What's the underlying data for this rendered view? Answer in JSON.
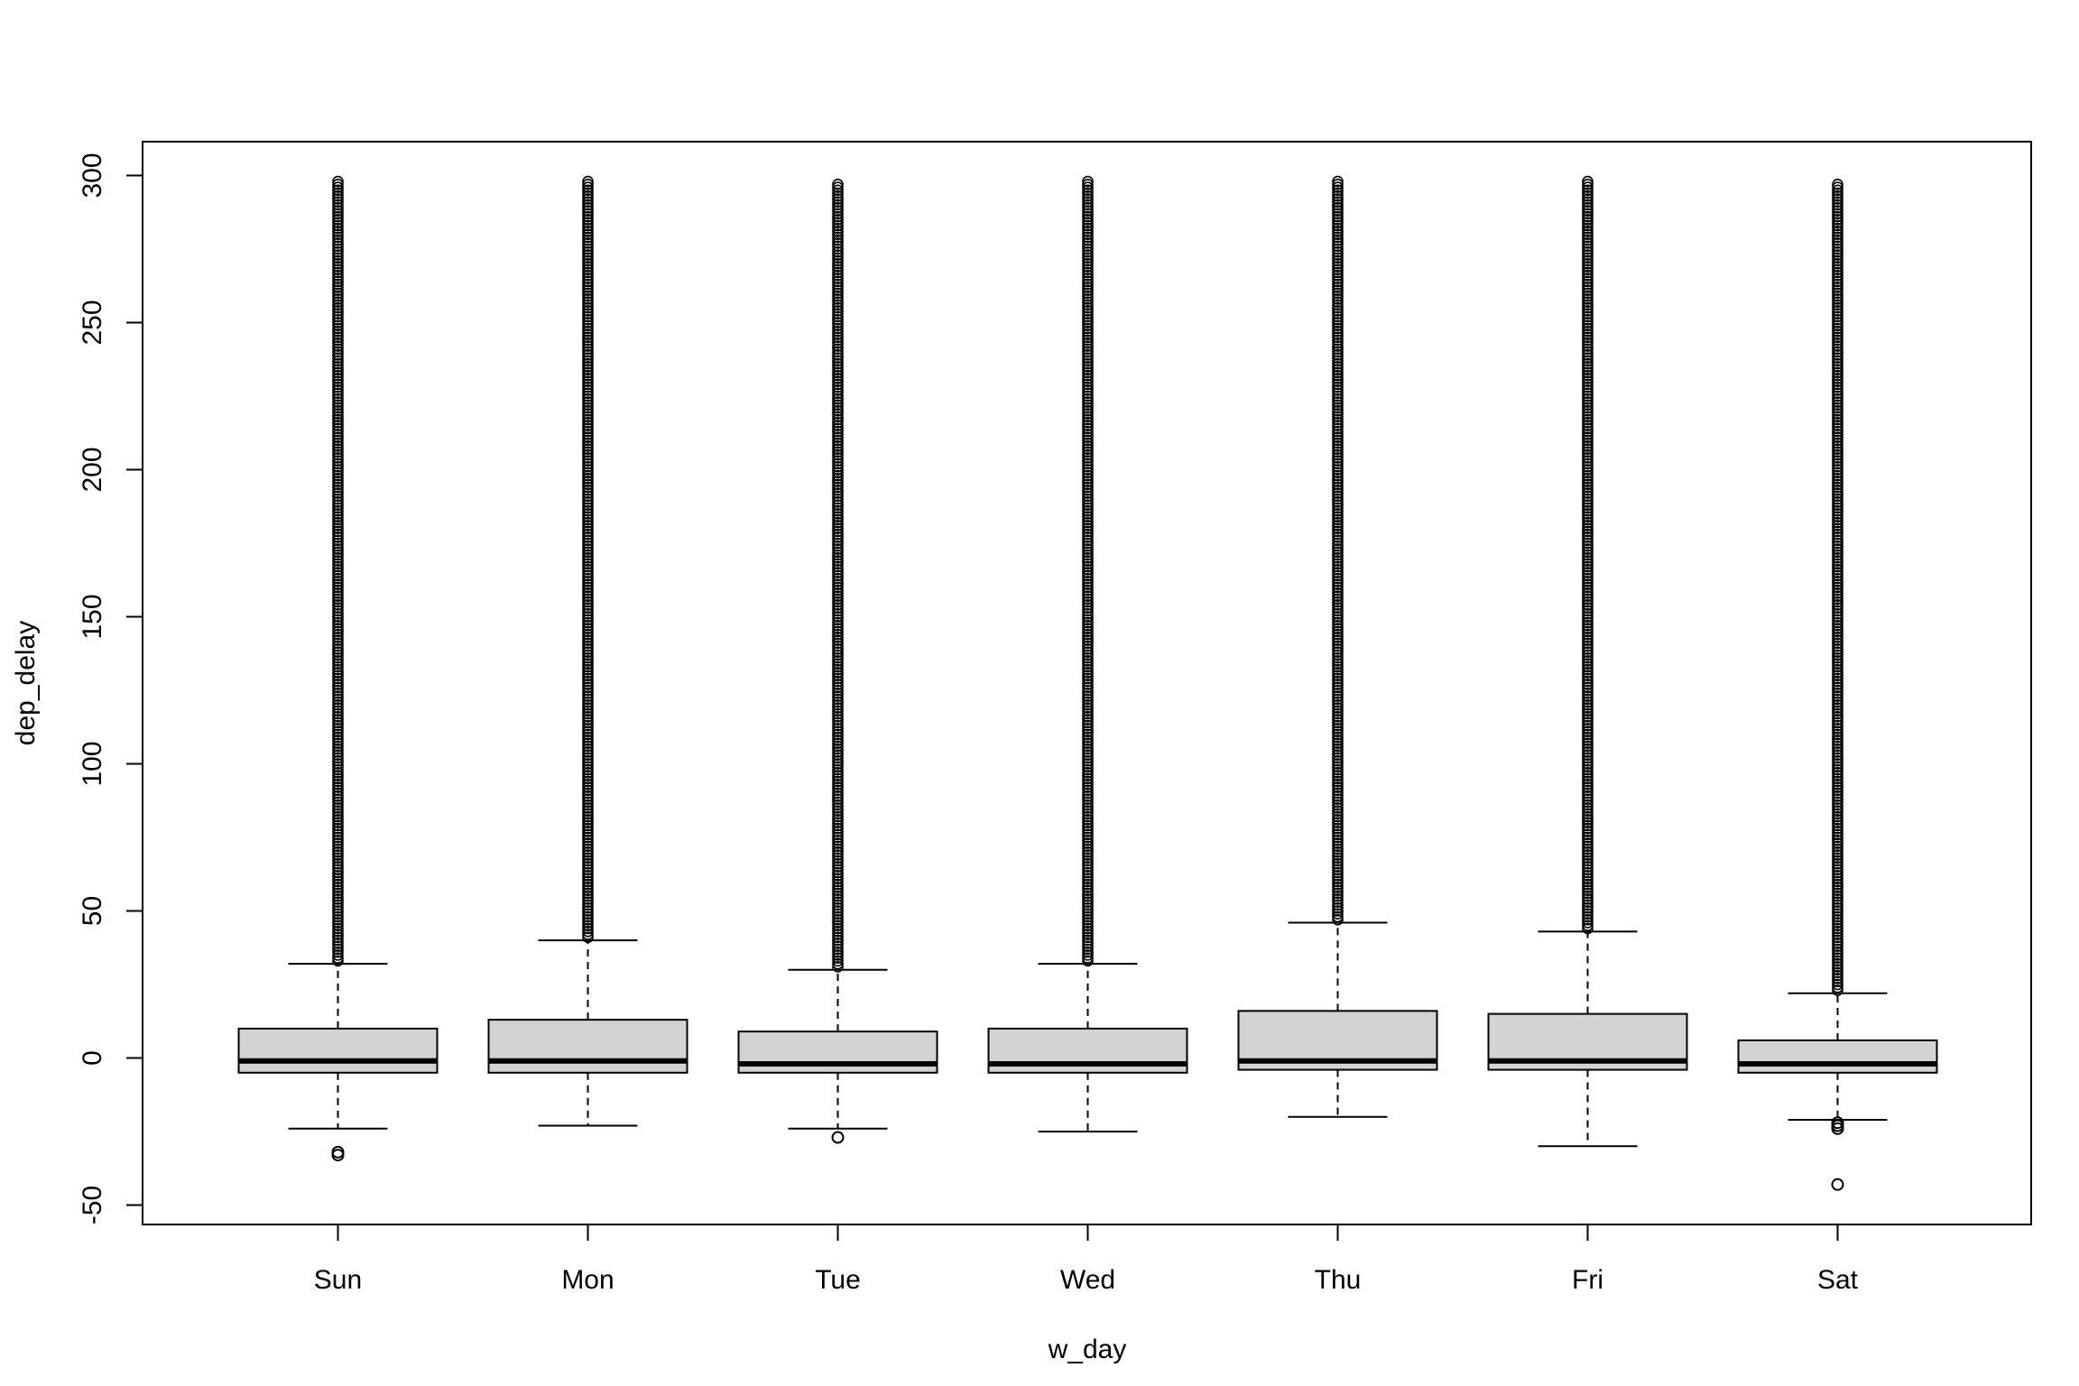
{
  "chart_data": {
    "type": "boxplot",
    "title": "",
    "xlabel": "w_day",
    "ylabel": "dep_delay",
    "categories": [
      "Sun",
      "Mon",
      "Tue",
      "Wed",
      "Thu",
      "Fri",
      "Sat"
    ],
    "ylim": [
      -53,
      305
    ],
    "y_ticks": [
      -50,
      0,
      50,
      100,
      150,
      200,
      250,
      300
    ],
    "y_tick_labels": [
      "-50",
      "0",
      "50",
      "100",
      "150",
      "200",
      "250",
      "300"
    ],
    "grid": false,
    "legend": "none",
    "box_fill": "#d3d3d3",
    "stroke_color": "#000000",
    "boxes": [
      {
        "category": "Sun",
        "lower_whisker": -24,
        "q1": -5,
        "median": -1,
        "q3": 10,
        "upper_whisker": 32,
        "outliers_low": [
          -33,
          -32
        ],
        "outlier_band_high": [
          33,
          298
        ]
      },
      {
        "category": "Mon",
        "lower_whisker": -23,
        "q1": -5,
        "median": -1,
        "q3": 13,
        "upper_whisker": 40,
        "outliers_low": [],
        "outlier_band_high": [
          41,
          298
        ]
      },
      {
        "category": "Tue",
        "lower_whisker": -24,
        "q1": -5,
        "median": -2,
        "q3": 9,
        "upper_whisker": 30,
        "outliers_low": [
          -27
        ],
        "outlier_band_high": [
          31,
          297
        ]
      },
      {
        "category": "Wed",
        "lower_whisker": -25,
        "q1": -5,
        "median": -2,
        "q3": 10,
        "upper_whisker": 32,
        "outliers_low": [],
        "outlier_band_high": [
          33,
          298
        ]
      },
      {
        "category": "Thu",
        "lower_whisker": -20,
        "q1": -4,
        "median": -1,
        "q3": 16,
        "upper_whisker": 46,
        "outliers_low": [],
        "outlier_band_high": [
          47,
          298
        ]
      },
      {
        "category": "Fri",
        "lower_whisker": -30,
        "q1": -4,
        "median": -1,
        "q3": 15,
        "upper_whisker": 43,
        "outliers_low": [],
        "outlier_band_high": [
          44,
          298
        ]
      },
      {
        "category": "Sat",
        "lower_whisker": -21,
        "q1": -5,
        "median": -2,
        "q3": 6,
        "upper_whisker": 22,
        "outliers_low": [
          -22,
          -23,
          -24,
          -43
        ],
        "outlier_band_high": [
          23,
          297
        ]
      }
    ]
  }
}
